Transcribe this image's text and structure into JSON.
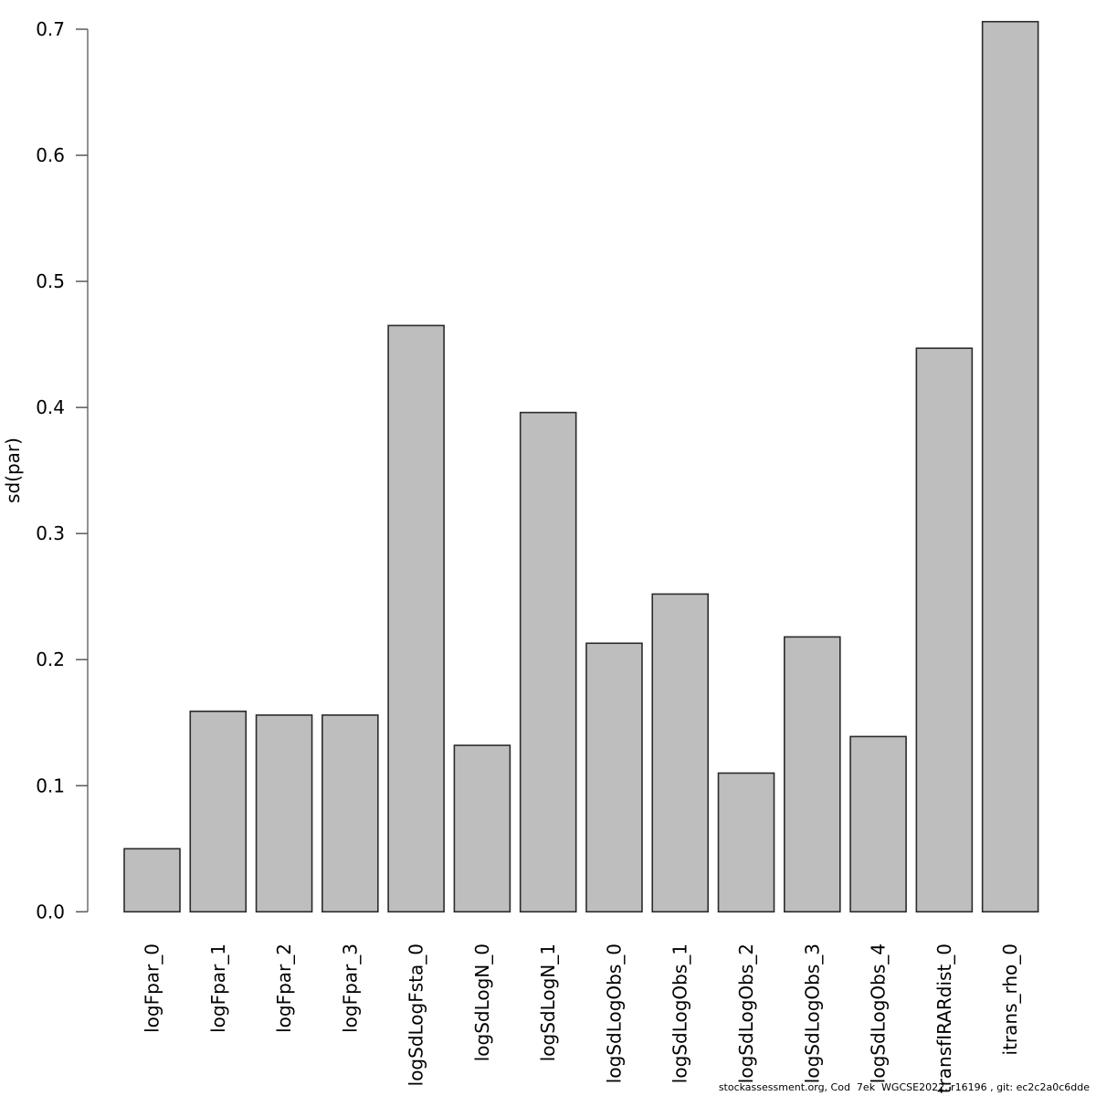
{
  "chart_data": {
    "type": "bar",
    "title": "",
    "xlabel": "",
    "ylabel": "sd(par)",
    "categories": [
      "logFpar_0",
      "logFpar_1",
      "logFpar_2",
      "logFpar_3",
      "logSdLogFsta_0",
      "logSdLogN_0",
      "logSdLogN_1",
      "logSdLogObs_0",
      "logSdLogObs_1",
      "logSdLogObs_2",
      "logSdLogObs_3",
      "logSdLogObs_4",
      "transfIRARdist_0",
      "itrans_rho_0"
    ],
    "values": [
      0.05,
      0.159,
      0.156,
      0.156,
      0.465,
      0.132,
      0.396,
      0.213,
      0.252,
      0.11,
      0.218,
      0.139,
      0.447,
      0.706
    ],
    "ylim": [
      0.0,
      0.7
    ],
    "yticks": [
      "0.0",
      "0.1",
      "0.2",
      "0.3",
      "0.4",
      "0.5",
      "0.6",
      "0.7"
    ],
    "grid": false,
    "legend_position": "none",
    "x_label_rotation_degrees": 90,
    "colors": {
      "bar_fill": "#bebebe",
      "bar_border": "#2b2b2b",
      "axis_line": "#6e6e6e",
      "tick_mark": "#5a5a5a",
      "text": "#000000"
    }
  },
  "footer": {
    "text": "stockassessment.org, Cod  7ek  WGCSE2022, r16196 , git: ec2c2a0c6dde"
  }
}
